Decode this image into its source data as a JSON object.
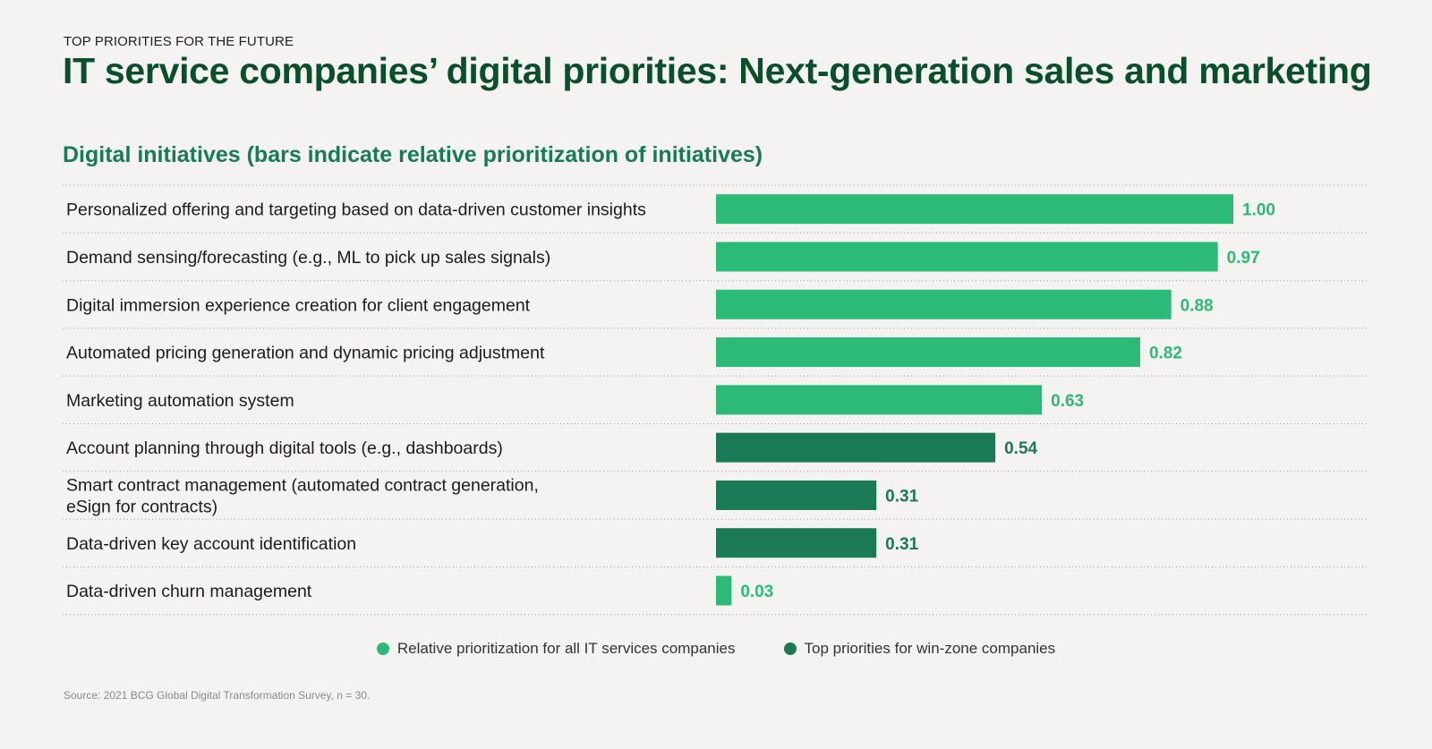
{
  "header": {
    "kicker": "TOP PRIORITIES FOR THE FUTURE",
    "title": "IT service companies’ digital priorities: Next-generation sales and marketing",
    "subtitle": "Digital initiatives (bars indicate relative prioritization of initiatives)"
  },
  "colors": {
    "all_companies": "#2bbb76",
    "win_zone": "#197a55"
  },
  "legend": [
    {
      "label": "Relative prioritization for all IT services companies",
      "color": "#2bbb76"
    },
    {
      "label": "Top priorities for win-zone companies",
      "color": "#197a55"
    }
  ],
  "source": "Source: 2021 BCG Global Digital Transformation Survey, n = 30.",
  "chart_data": {
    "type": "bar",
    "orientation": "horizontal",
    "title": "Digital initiatives (bars indicate relative prioritization of initiatives)",
    "xlabel": "",
    "ylabel": "",
    "xlim": [
      0,
      1
    ],
    "grid": "dotted row separators",
    "legend_position": "bottom-center",
    "categories": [
      [
        "Personalized offering and targeting based on data-driven customer insights"
      ],
      [
        "Demand sensing/forecasting (e.g., ML to pick up sales signals)"
      ],
      [
        "Digital immersion experience creation for client engagement"
      ],
      [
        "Automated pricing generation and dynamic pricing adjustment"
      ],
      [
        "Marketing automation system"
      ],
      [
        "Account planning through digital tools (e.g., dashboards)"
      ],
      [
        "Smart contract management (automated contract generation,",
        "eSign for contracts)"
      ],
      [
        "Data-driven key account identification"
      ],
      [
        "Data-driven churn management"
      ]
    ],
    "values": [
      1.0,
      0.97,
      0.88,
      0.82,
      0.63,
      0.54,
      0.31,
      0.31,
      0.03
    ],
    "value_labels": [
      "1.00",
      "0.97",
      "0.88",
      "0.82",
      "0.63",
      "0.54",
      "0.31",
      "0.31",
      "0.03"
    ],
    "series_membership": [
      "all",
      "all",
      "all",
      "all",
      "all",
      "win",
      "win",
      "win",
      "all"
    ]
  }
}
